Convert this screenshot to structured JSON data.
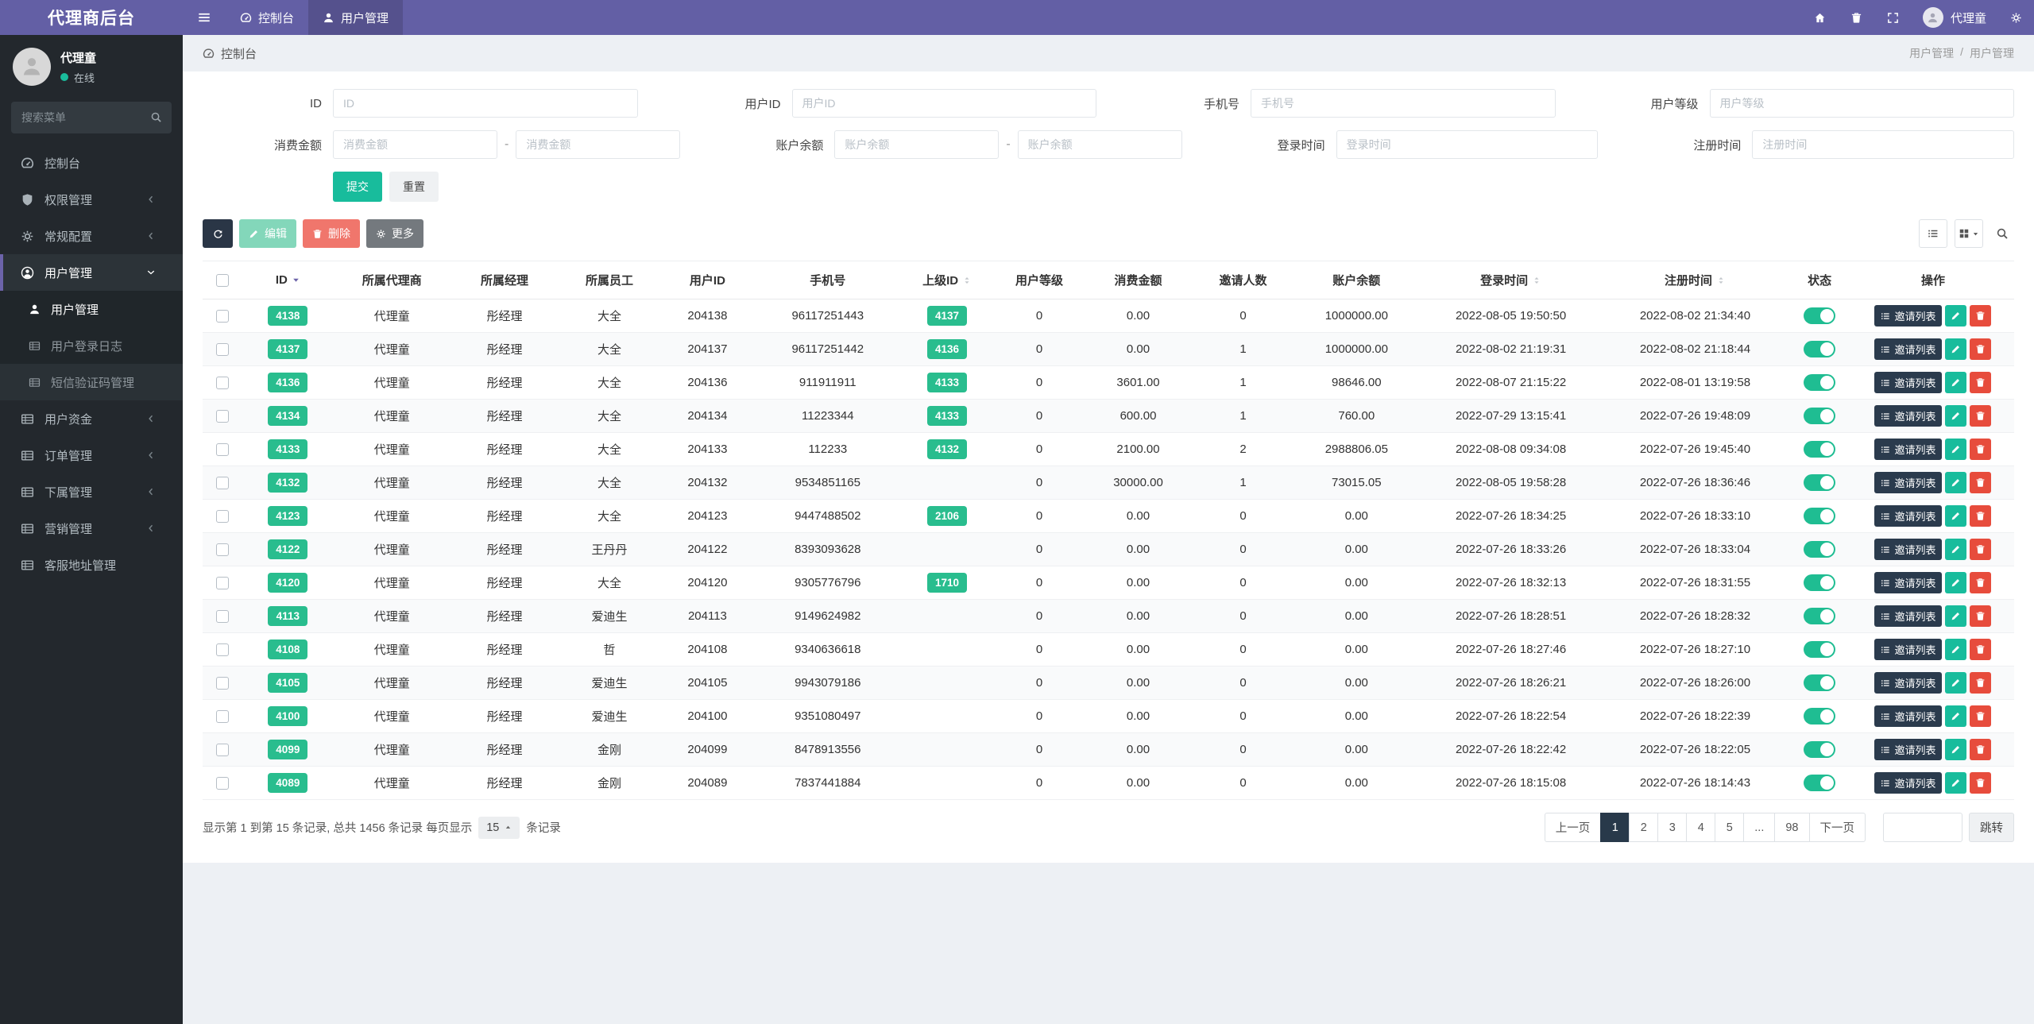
{
  "brand": {
    "title": "代理商后台"
  },
  "topbar": {
    "tabs": [
      {
        "icon": "dashboard-icon",
        "label": "控制台",
        "active": false
      },
      {
        "icon": "user-icon",
        "label": "用户管理",
        "active": true
      }
    ],
    "right_icons": [
      "home-icon",
      "trash-icon",
      "expand-icon"
    ],
    "user": {
      "name": "代理童"
    }
  },
  "sidebar": {
    "user": {
      "name": "代理童",
      "status": "在线"
    },
    "search_placeholder": "搜索菜单",
    "menu": [
      {
        "icon": "dashboard-icon",
        "label": "控制台"
      },
      {
        "icon": "shield-icon",
        "label": "权限管理",
        "chevron": "left"
      },
      {
        "icon": "gears-icon",
        "label": "常规配置",
        "chevron": "left"
      },
      {
        "icon": "user-circle-icon",
        "label": "用户管理",
        "chevron": "down",
        "active": true,
        "children": [
          {
            "icon": "user-icon",
            "label": "用户管理",
            "active": true
          },
          {
            "icon": "table-icon",
            "label": "用户登录日志"
          },
          {
            "icon": "table-icon",
            "label": "短信验证码管理",
            "highlight": true
          }
        ]
      },
      {
        "icon": "table-icon",
        "label": "用户资金",
        "chevron": "left"
      },
      {
        "icon": "table-icon",
        "label": "订单管理",
        "chevron": "left"
      },
      {
        "icon": "table-icon",
        "label": "下属管理",
        "chevron": "left"
      },
      {
        "icon": "table-icon",
        "label": "营销管理",
        "chevron": "left"
      },
      {
        "icon": "table-icon",
        "label": "客服地址管理"
      }
    ]
  },
  "breadcrumb": {
    "left": "控制台",
    "right": [
      "用户管理",
      "用户管理"
    ]
  },
  "filter": {
    "rows": [
      [
        {
          "label": "ID",
          "placeholder": "ID"
        },
        {
          "label": "用户ID",
          "placeholder": "用户ID"
        },
        {
          "label": "手机号",
          "placeholder": "手机号"
        },
        {
          "label": "用户等级",
          "placeholder": "用户等级"
        }
      ],
      [
        {
          "label": "消费金额",
          "placeholder": "消费金额",
          "range": true
        },
        {
          "label": "账户余额",
          "placeholder": "账户余额",
          "range": true
        },
        {
          "label": "登录时间",
          "placeholder": "登录时间"
        },
        {
          "label": "注册时间",
          "placeholder": "注册时间"
        }
      ]
    ],
    "submit": "提交",
    "reset": "重置"
  },
  "toolbar": {
    "edit": "编辑",
    "delete": "删除",
    "more": "更多"
  },
  "table": {
    "columns": [
      {
        "label": "ID",
        "sort": "desc"
      },
      {
        "label": "所属代理商"
      },
      {
        "label": "所属经理"
      },
      {
        "label": "所属员工"
      },
      {
        "label": "用户ID"
      },
      {
        "label": "手机号"
      },
      {
        "label": "上级ID",
        "sort": "both"
      },
      {
        "label": "用户等级"
      },
      {
        "label": "消费金额"
      },
      {
        "label": "邀请人数"
      },
      {
        "label": "账户余额"
      },
      {
        "label": "登录时间",
        "sort": "both"
      },
      {
        "label": "注册时间",
        "sort": "both"
      },
      {
        "label": "状态"
      },
      {
        "label": "操作"
      }
    ],
    "invite_btn": "邀请列表",
    "rows": [
      {
        "id": "4138",
        "agent": "代理童",
        "manager": "彤经理",
        "staff": "大全",
        "user_id": "204138",
        "phone": "96117251443",
        "parent_id": "4137",
        "level": "0",
        "consume": "0.00",
        "invites": "0",
        "balance": "1000000.00",
        "login_at": "2022-08-05 19:50:50",
        "reg_at": "2022-08-02 21:34:40",
        "status": true
      },
      {
        "id": "4137",
        "agent": "代理童",
        "manager": "彤经理",
        "staff": "大全",
        "user_id": "204137",
        "phone": "96117251442",
        "parent_id": "4136",
        "level": "0",
        "consume": "0.00",
        "invites": "1",
        "balance": "1000000.00",
        "login_at": "2022-08-02 21:19:31",
        "reg_at": "2022-08-02 21:18:44",
        "status": true
      },
      {
        "id": "4136",
        "agent": "代理童",
        "manager": "彤经理",
        "staff": "大全",
        "user_id": "204136",
        "phone": "911911911",
        "parent_id": "4133",
        "level": "0",
        "consume": "3601.00",
        "invites": "1",
        "balance": "98646.00",
        "login_at": "2022-08-07 21:15:22",
        "reg_at": "2022-08-01 13:19:58",
        "status": true
      },
      {
        "id": "4134",
        "agent": "代理童",
        "manager": "彤经理",
        "staff": "大全",
        "user_id": "204134",
        "phone": "11223344",
        "parent_id": "4133",
        "level": "0",
        "consume": "600.00",
        "invites": "1",
        "balance": "760.00",
        "login_at": "2022-07-29 13:15:41",
        "reg_at": "2022-07-26 19:48:09",
        "status": true
      },
      {
        "id": "4133",
        "agent": "代理童",
        "manager": "彤经理",
        "staff": "大全",
        "user_id": "204133",
        "phone": "112233",
        "parent_id": "4132",
        "level": "0",
        "consume": "2100.00",
        "invites": "2",
        "balance": "2988806.05",
        "login_at": "2022-08-08 09:34:08",
        "reg_at": "2022-07-26 19:45:40",
        "status": true
      },
      {
        "id": "4132",
        "agent": "代理童",
        "manager": "彤经理",
        "staff": "大全",
        "user_id": "204132",
        "phone": "9534851165",
        "parent_id": "",
        "level": "0",
        "consume": "30000.00",
        "invites": "1",
        "balance": "73015.05",
        "login_at": "2022-08-05 19:58:28",
        "reg_at": "2022-07-26 18:36:46",
        "status": true
      },
      {
        "id": "4123",
        "agent": "代理童",
        "manager": "彤经理",
        "staff": "大全",
        "user_id": "204123",
        "phone": "9447488502",
        "parent_id": "2106",
        "level": "0",
        "consume": "0.00",
        "invites": "0",
        "balance": "0.00",
        "login_at": "2022-07-26 18:34:25",
        "reg_at": "2022-07-26 18:33:10",
        "status": true
      },
      {
        "id": "4122",
        "agent": "代理童",
        "manager": "彤经理",
        "staff": "王丹丹",
        "user_id": "204122",
        "phone": "8393093628",
        "parent_id": "",
        "level": "0",
        "consume": "0.00",
        "invites": "0",
        "balance": "0.00",
        "login_at": "2022-07-26 18:33:26",
        "reg_at": "2022-07-26 18:33:04",
        "status": true
      },
      {
        "id": "4120",
        "agent": "代理童",
        "manager": "彤经理",
        "staff": "大全",
        "user_id": "204120",
        "phone": "9305776796",
        "parent_id": "1710",
        "level": "0",
        "consume": "0.00",
        "invites": "0",
        "balance": "0.00",
        "login_at": "2022-07-26 18:32:13",
        "reg_at": "2022-07-26 18:31:55",
        "status": true
      },
      {
        "id": "4113",
        "agent": "代理童",
        "manager": "彤经理",
        "staff": "爱迪生",
        "user_id": "204113",
        "phone": "9149624982",
        "parent_id": "",
        "level": "0",
        "consume": "0.00",
        "invites": "0",
        "balance": "0.00",
        "login_at": "2022-07-26 18:28:51",
        "reg_at": "2022-07-26 18:28:32",
        "status": true
      },
      {
        "id": "4108",
        "agent": "代理童",
        "manager": "彤经理",
        "staff": "哲",
        "user_id": "204108",
        "phone": "9340636618",
        "parent_id": "",
        "level": "0",
        "consume": "0.00",
        "invites": "0",
        "balance": "0.00",
        "login_at": "2022-07-26 18:27:46",
        "reg_at": "2022-07-26 18:27:10",
        "status": true
      },
      {
        "id": "4105",
        "agent": "代理童",
        "manager": "彤经理",
        "staff": "爱迪生",
        "user_id": "204105",
        "phone": "9943079186",
        "parent_id": "",
        "level": "0",
        "consume": "0.00",
        "invites": "0",
        "balance": "0.00",
        "login_at": "2022-07-26 18:26:21",
        "reg_at": "2022-07-26 18:26:00",
        "status": true
      },
      {
        "id": "4100",
        "agent": "代理童",
        "manager": "彤经理",
        "staff": "爱迪生",
        "user_id": "204100",
        "phone": "9351080497",
        "parent_id": "",
        "level": "0",
        "consume": "0.00",
        "invites": "0",
        "balance": "0.00",
        "login_at": "2022-07-26 18:22:54",
        "reg_at": "2022-07-26 18:22:39",
        "status": true
      },
      {
        "id": "4099",
        "agent": "代理童",
        "manager": "彤经理",
        "staff": "金刚",
        "user_id": "204099",
        "phone": "8478913556",
        "parent_id": "",
        "level": "0",
        "consume": "0.00",
        "invites": "0",
        "balance": "0.00",
        "login_at": "2022-07-26 18:22:42",
        "reg_at": "2022-07-26 18:22:05",
        "status": true
      },
      {
        "id": "4089",
        "agent": "代理童",
        "manager": "彤经理",
        "staff": "金刚",
        "user_id": "204089",
        "phone": "7837441884",
        "parent_id": "",
        "level": "0",
        "consume": "0.00",
        "invites": "0",
        "balance": "0.00",
        "login_at": "2022-07-26 18:15:08",
        "reg_at": "2022-07-26 18:14:43",
        "status": true
      }
    ]
  },
  "pagination": {
    "summary_prefix": "显示第 1 到第 15 条记录, 总共 1456 条记录 每页显示",
    "page_size": "15",
    "summary_suffix": "条记录",
    "prev": "上一页",
    "pages": [
      "1",
      "2",
      "3",
      "4",
      "5",
      "...",
      "98"
    ],
    "active_page": "1",
    "next": "下一页",
    "jump": "跳转"
  }
}
